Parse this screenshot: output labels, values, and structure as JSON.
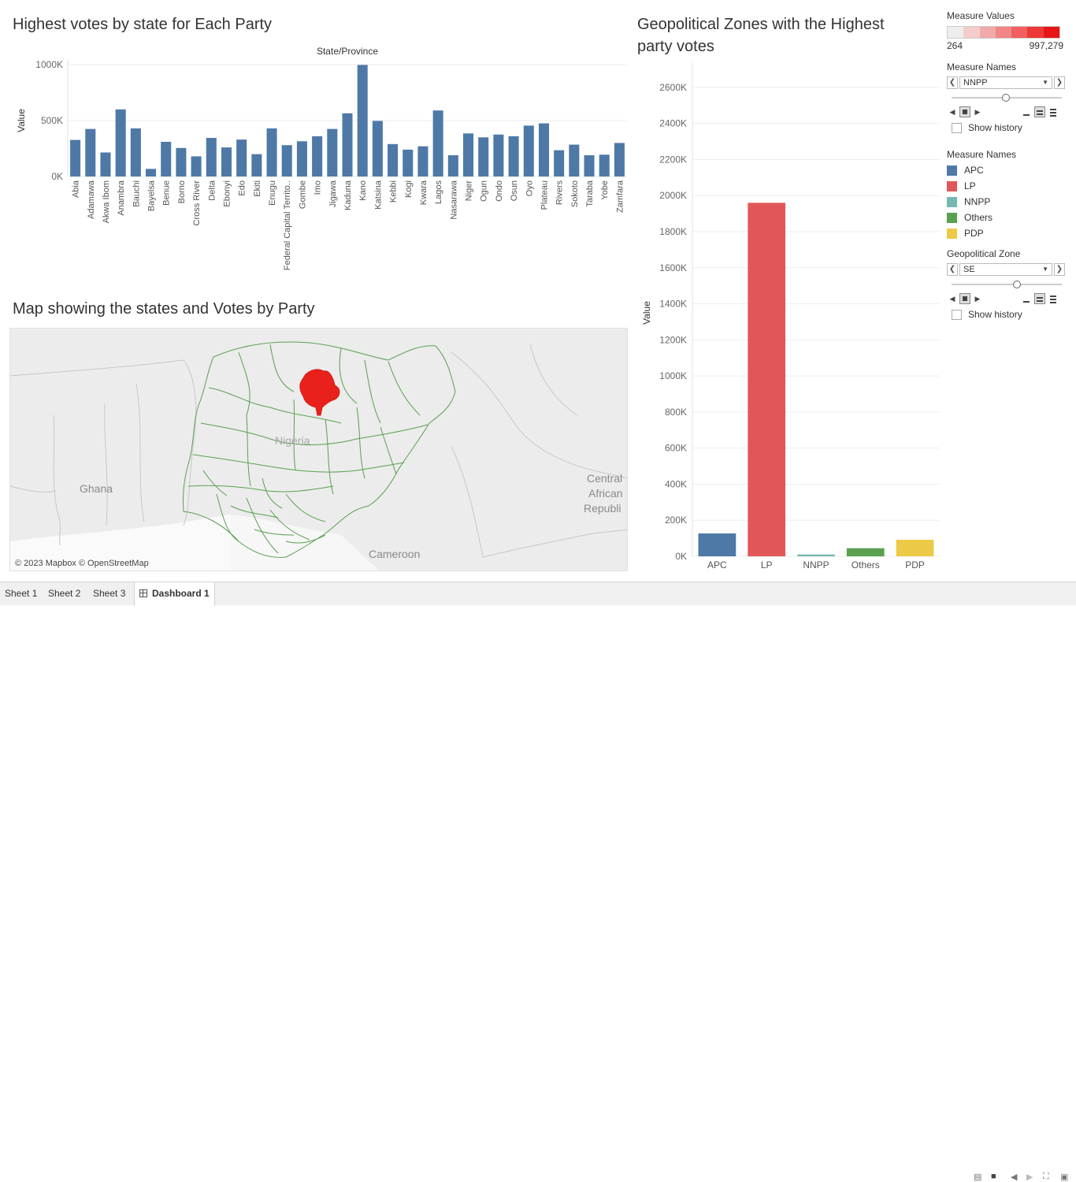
{
  "titles": {
    "votes_by_state": "Highest votes by state for Each Party",
    "zones": "Geopolitical Zones with the Highest party votes",
    "map": "Map showing the states and Votes by Party"
  },
  "chart_data": [
    {
      "type": "bar",
      "title": "Highest votes by state for Each Party",
      "header": "State/Province",
      "ylabel": "Value",
      "ylim": [
        0,
        1000000
      ],
      "yticks": [
        "0K",
        "500K",
        "1000K"
      ],
      "color": "#4e79a7",
      "categories": [
        "Abia",
        "Adamawa",
        "Akwa Ibom",
        "Anambra",
        "Bauchi",
        "Bayelsa",
        "Benue",
        "Borno",
        "Cross River",
        "Delta",
        "Ebonyi",
        "Edo",
        "Ekiti",
        "Enugu",
        "Federal Capital Territo..",
        "Gombe",
        "Imo",
        "Jigawa",
        "Kaduna",
        "Kano",
        "Katsina",
        "Kebbi",
        "Kogi",
        "Kwara",
        "Lagos",
        "Nasarawa",
        "Niger",
        "Ogun",
        "Ondo",
        "Osun",
        "Oyo",
        "Plateau",
        "Rivers",
        "Sokoto",
        "Taraba",
        "Yobe",
        "Zamfara"
      ],
      "values": [
        327000,
        425000,
        215000,
        600000,
        430000,
        68000,
        310000,
        255000,
        180000,
        345000,
        260000,
        330000,
        200000,
        430000,
        280000,
        315000,
        360000,
        425000,
        565000,
        997279,
        497000,
        290000,
        240000,
        270000,
        590000,
        190000,
        385000,
        350000,
        375000,
        360000,
        455000,
        475000,
        235000,
        285000,
        190000,
        195000,
        300000
      ]
    },
    {
      "type": "bar",
      "title": "Geopolitical Zones with the Highest party votes",
      "ylabel": "Value",
      "ylim": [
        0,
        2700000
      ],
      "yticks": [
        "0K",
        "200K",
        "400K",
        "600K",
        "800K",
        "1000K",
        "1200K",
        "1400K",
        "1600K",
        "1800K",
        "2000K",
        "2200K",
        "2400K",
        "2600K"
      ],
      "categories": [
        "APC",
        "LP",
        "NNPP",
        "Others",
        "PDP"
      ],
      "values": [
        127000,
        1960000,
        10000,
        45000,
        92000
      ],
      "colors": [
        "#4e79a7",
        "#e15759",
        "#76b7b2",
        "#59a14f",
        "#edc948"
      ]
    }
  ],
  "map": {
    "labels": {
      "ghana": "Ghana",
      "nigeria": "Nigeria",
      "cameroon": "Cameroon",
      "car1": "Central",
      "car2": "African",
      "car3": "Republi"
    },
    "copyright": "© 2023 Mapbox © OpenStreetMap",
    "highlight_color": "#e8211d",
    "border_color": "#59a14f"
  },
  "panel": {
    "measure_values": {
      "title": "Measure Values",
      "min": "264",
      "max": "997,279",
      "ramp": [
        "#eeeeee",
        "#f4cccc",
        "#f2a9a9",
        "#f28585",
        "#f15f5f",
        "#ee3737",
        "#e81515"
      ]
    },
    "measure_names_filter": {
      "title": "Measure Names",
      "value": "NNPP",
      "show_history": "Show history"
    },
    "legend": {
      "title": "Measure Names",
      "items": [
        {
          "label": "APC",
          "color": "#4e79a7"
        },
        {
          "label": "LP",
          "color": "#e15759"
        },
        {
          "label": "NNPP",
          "color": "#76b7b2"
        },
        {
          "label": "Others",
          "color": "#59a14f"
        },
        {
          "label": "PDP",
          "color": "#edc948"
        }
      ]
    },
    "zone_filter": {
      "title": "Geopolitical Zone",
      "value": "SE",
      "show_history": "Show history"
    }
  },
  "tabs": [
    "Sheet 1",
    "Sheet 2",
    "Sheet 3",
    "Dashboard 1"
  ]
}
